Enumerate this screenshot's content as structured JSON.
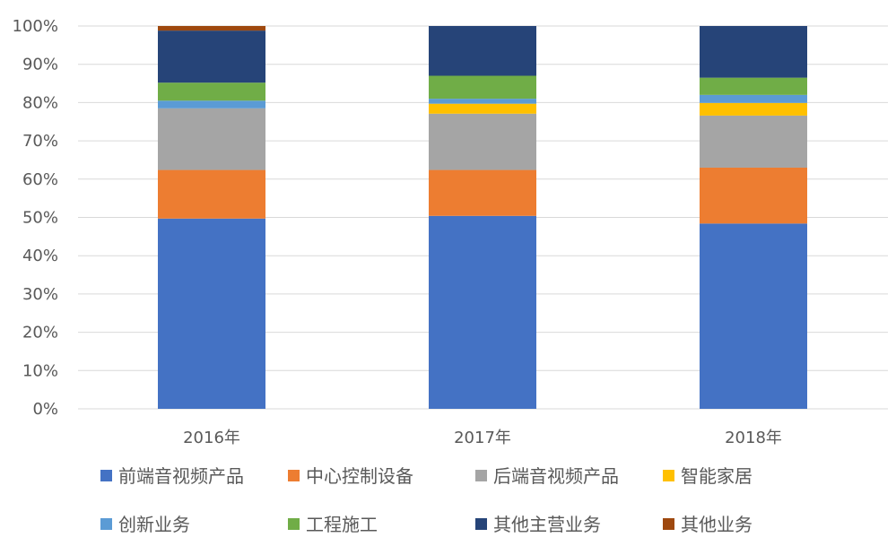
{
  "chart_data": {
    "type": "bar",
    "stacked": true,
    "percent": true,
    "categories": [
      "2016年",
      "2017年",
      "2018年"
    ],
    "y_ticks": [
      "0%",
      "10%",
      "20%",
      "30%",
      "40%",
      "50%",
      "60%",
      "70%",
      "80%",
      "90%",
      "100%"
    ],
    "ylim": [
      0,
      100
    ],
    "grid": true,
    "legend_position": "bottom",
    "series": [
      {
        "name": "前端音视频产品",
        "color": "#4472C4",
        "values": [
          49.7,
          50.4,
          48.4
        ]
      },
      {
        "name": "中心控制设备",
        "color": "#ED7D31",
        "values": [
          12.7,
          12.0,
          14.6
        ]
      },
      {
        "name": "后端音视频产品",
        "color": "#A5A5A5",
        "values": [
          16.1,
          14.7,
          13.6
        ]
      },
      {
        "name": "智能家居",
        "color": "#FFC000",
        "values": [
          0.0,
          2.6,
          3.3
        ]
      },
      {
        "name": "创新业务",
        "color": "#5B9BD5",
        "values": [
          2.0,
          1.3,
          2.1
        ]
      },
      {
        "name": "工程施工",
        "color": "#70AD47",
        "values": [
          4.7,
          6.0,
          4.5
        ]
      },
      {
        "name": "其他主营业务",
        "color": "#264478",
        "values": [
          13.6,
          13.0,
          13.5
        ]
      },
      {
        "name": "其他业务",
        "color": "#9E480E",
        "values": [
          1.2,
          0.0,
          0.0
        ]
      }
    ]
  }
}
